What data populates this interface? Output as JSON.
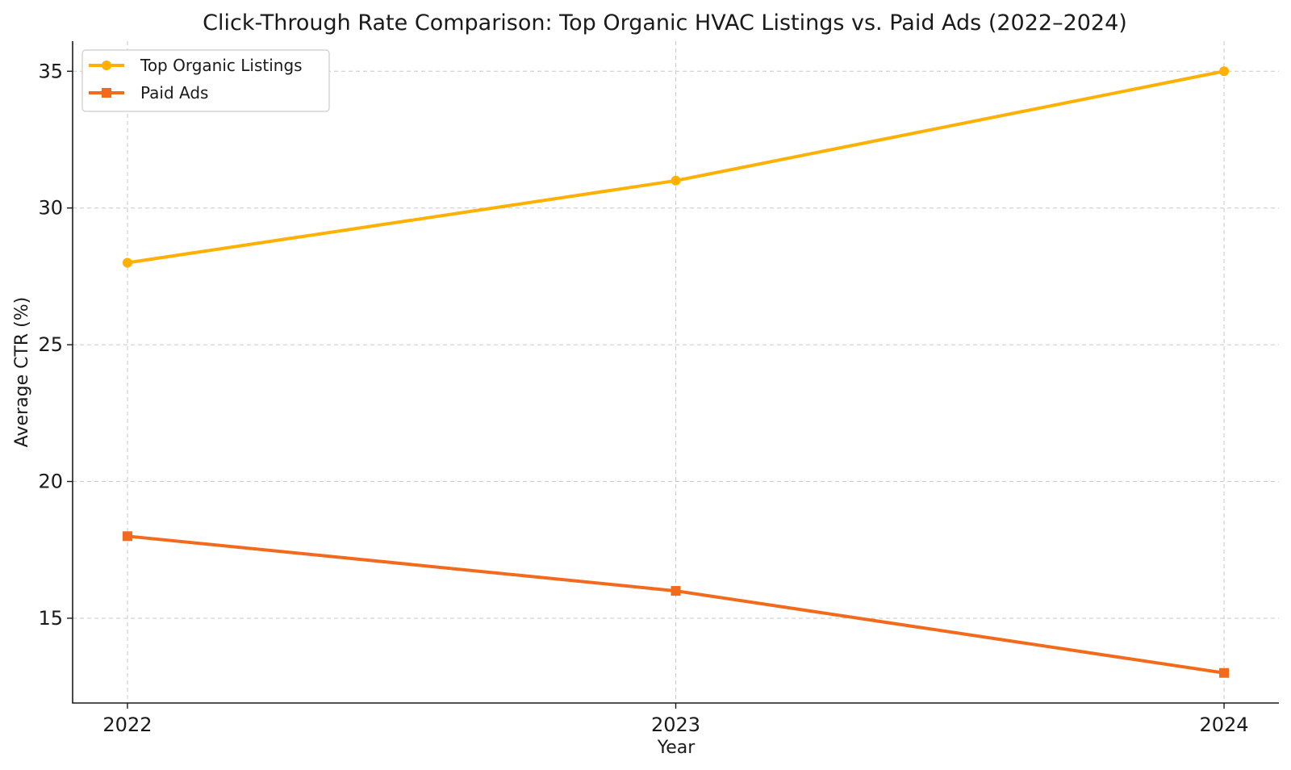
{
  "chart_data": {
    "type": "line",
    "title": "Click-Through Rate Comparison: Top Organic HVAC Listings vs. Paid Ads (2022–2024)",
    "xlabel": "Year",
    "ylabel": "Average CTR (%)",
    "x": [
      2022,
      2023,
      2024
    ],
    "x_tick_labels": [
      "2022",
      "2023",
      "2024"
    ],
    "y_ticks": [
      15,
      20,
      25,
      30,
      35
    ],
    "y_tick_labels": [
      "15",
      "20",
      "25",
      "30",
      "35"
    ],
    "ylim": [
      11.9,
      36.1
    ],
    "xlim": [
      2021.9,
      2024.1
    ],
    "grid": true,
    "legend_position": "top-left",
    "series": [
      {
        "name": "Top Organic Listings",
        "values": [
          28,
          31,
          35
        ],
        "color": "#FFB000",
        "marker": "circle"
      },
      {
        "name": "Paid Ads",
        "values": [
          18,
          16,
          13
        ],
        "color": "#F26A1B",
        "marker": "square"
      }
    ]
  }
}
